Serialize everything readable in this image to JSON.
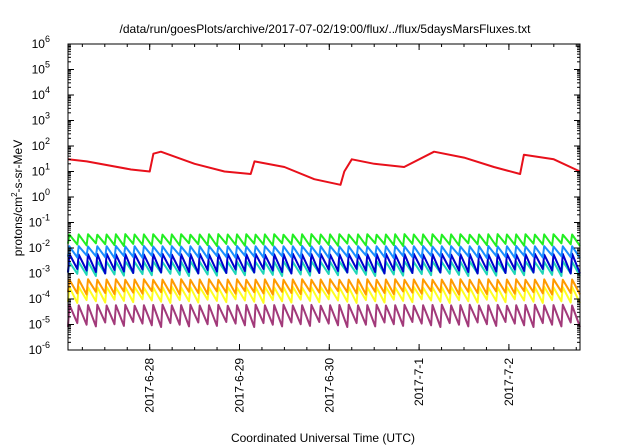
{
  "chart_data": {
    "type": "line",
    "title": "/data/run/goesPlots/archive/2017-07-02/19:00/flux/../flux/5daysMarsFluxes.txt",
    "xlabel": "Coordinated Universal Time (UTC)",
    "ylabel_prefix": "protons/cm",
    "ylabel_sup": "2",
    "ylabel_suffix": "-s-sr-MeV",
    "yscale": "log",
    "ylim_exponents": [
      -6,
      6
    ],
    "y_tick_labels": [
      {
        "base": "10",
        "exp": "-6"
      },
      {
        "base": "10",
        "exp": "-5"
      },
      {
        "base": "10",
        "exp": "-4"
      },
      {
        "base": "10",
        "exp": "-3"
      },
      {
        "base": "10",
        "exp": "-2"
      },
      {
        "base": "10",
        "exp": "-1"
      },
      {
        "base": "10",
        "exp": "0"
      },
      {
        "base": "10",
        "exp": "1"
      },
      {
        "base": "10",
        "exp": "2"
      },
      {
        "base": "10",
        "exp": "3"
      },
      {
        "base": "10",
        "exp": "4"
      },
      {
        "base": "10",
        "exp": "5"
      },
      {
        "base": "10",
        "exp": "6"
      }
    ],
    "x_tick_labels": [
      "2017-6-28",
      "2017-6-29",
      "2017-6-30",
      "2017-7-1",
      "2017-7-2"
    ],
    "xlim": [
      "2017-06-27 02:10",
      "2017-07-02 19:00"
    ],
    "grid": false,
    "legend": "none",
    "series": [
      {
        "color": "#e8101b",
        "values": [
          {
            "x": "2017-06-27 02:10",
            "y": 30
          },
          {
            "x": "2017-06-27 07:10",
            "y": 25
          },
          {
            "x": "2017-06-27 19:00",
            "y": 12
          },
          {
            "x": "2017-06-28 00:00",
            "y": 10
          },
          {
            "x": "2017-06-28 01:00",
            "y": 50
          },
          {
            "x": "2017-06-28 03:00",
            "y": 60
          },
          {
            "x": "2017-06-28 12:00",
            "y": 20
          },
          {
            "x": "2017-06-28 20:00",
            "y": 10
          },
          {
            "x": "2017-06-29 03:00",
            "y": 8
          },
          {
            "x": "2017-06-29 04:00",
            "y": 25
          },
          {
            "x": "2017-06-29 12:00",
            "y": 15
          },
          {
            "x": "2017-06-29 20:00",
            "y": 5
          },
          {
            "x": "2017-06-30 03:00",
            "y": 3
          },
          {
            "x": "2017-06-30 04:00",
            "y": 10
          },
          {
            "x": "2017-06-30 06:00",
            "y": 30
          },
          {
            "x": "2017-06-30 12:00",
            "y": 20
          },
          {
            "x": "2017-06-30 20:00",
            "y": 15
          },
          {
            "x": "2017-07-01 04:00",
            "y": 60
          },
          {
            "x": "2017-07-01 12:00",
            "y": 35
          },
          {
            "x": "2017-07-01 20:00",
            "y": 15
          },
          {
            "x": "2017-07-02 03:00",
            "y": 8
          },
          {
            "x": "2017-07-02 04:00",
            "y": 45
          },
          {
            "x": "2017-07-02 12:00",
            "y": 30
          },
          {
            "x": "2017-07-02 19:00",
            "y": 10
          }
        ]
      },
      {
        "color": "#22ee22",
        "min": 0.012,
        "max": 0.035
      },
      {
        "color": "#1a8cff",
        "min": 0.004,
        "max": 0.012
      },
      {
        "color": "#0000cc",
        "min": 0.001,
        "max": 0.006
      },
      {
        "color": "#20d6b8",
        "min": 0.0008,
        "max": 0.003
      },
      {
        "color": "#ff9a00",
        "min": 0.00015,
        "max": 0.0006
      },
      {
        "color": "#ffff20",
        "min": 7e-05,
        "max": 0.0003
      },
      {
        "color": "#a23a7a",
        "min": 8e-06,
        "max": 6e-05
      }
    ]
  }
}
